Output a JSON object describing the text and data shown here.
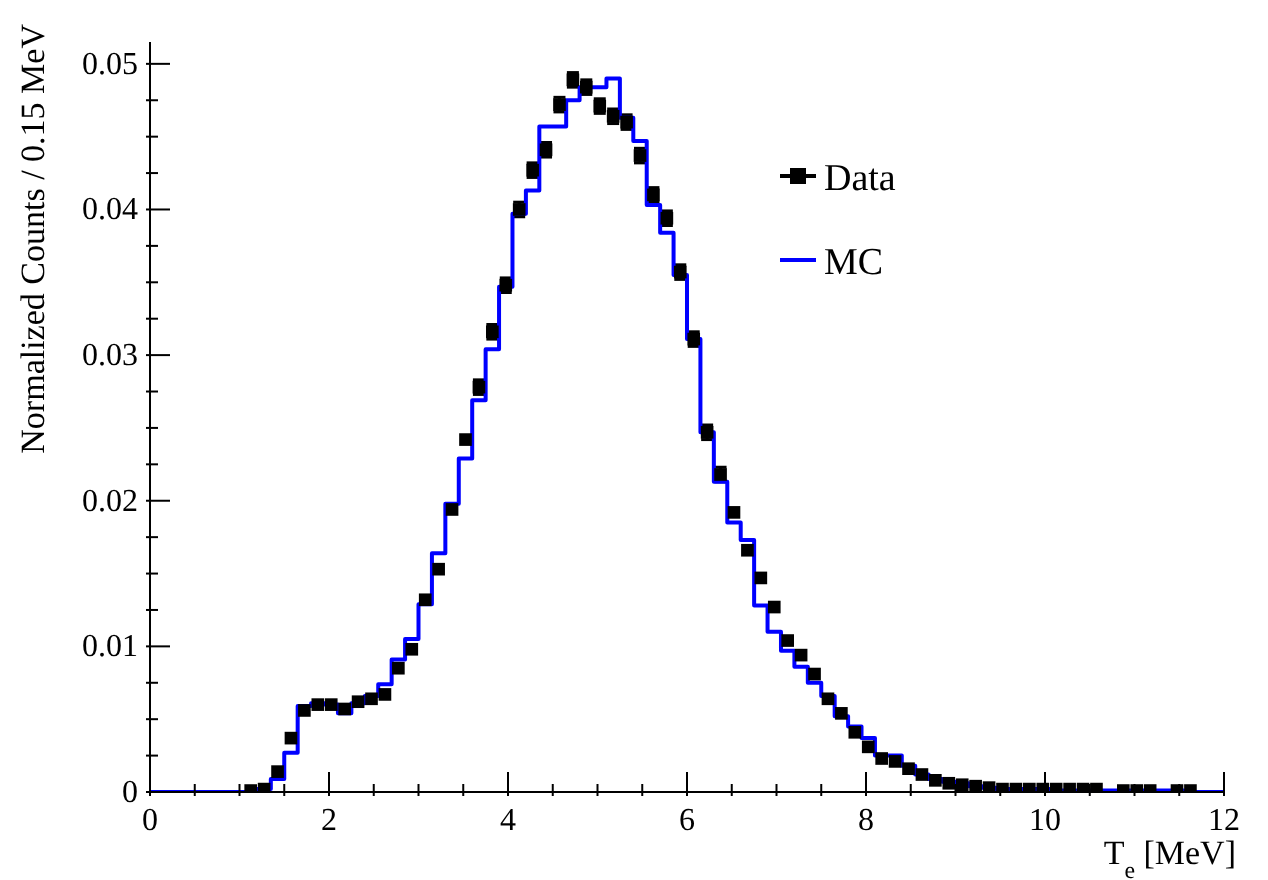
{
  "chart_data": {
    "type": "histogram",
    "xlabel": "T$_{e}$ [MeV]",
    "ylabel": "Normalized Counts / 0.15 MeV",
    "bins": [
      0,
      0.15,
      0.3,
      0.45,
      0.6,
      0.75,
      0.9,
      1.05,
      1.2,
      1.35,
      1.5,
      1.65,
      1.8,
      1.95,
      2.1,
      2.25,
      2.4,
      2.55,
      2.7,
      2.85,
      3,
      3.15,
      3.3,
      3.45,
      3.6,
      3.75,
      3.9,
      4.05,
      4.2,
      4.35,
      4.5,
      4.65,
      4.8,
      4.95,
      5.1,
      5.25,
      5.4,
      5.55,
      5.7,
      5.85,
      6,
      6.15,
      6.3,
      6.45,
      6.6,
      6.75,
      6.9,
      7.05,
      7.2,
      7.35,
      7.5,
      7.65,
      7.8,
      7.95,
      8.1,
      8.25,
      8.4,
      8.55,
      8.7,
      8.85,
      9,
      9.15,
      9.3,
      9.45,
      9.6,
      9.75,
      9.9,
      10.05,
      10.2,
      10.35,
      10.5,
      10.65,
      10.8,
      10.95,
      11.1,
      11.25,
      11.4,
      11.55,
      11.7,
      11.85,
      12
    ],
    "series": [
      {
        "name": "Data",
        "type": "scatter",
        "color": "#000000",
        "marker": "square",
        "x": [
          1.125,
          1.275,
          1.425,
          1.575,
          1.725,
          1.875,
          2.025,
          2.175,
          2.325,
          2.475,
          2.625,
          2.775,
          2.925,
          3.075,
          3.225,
          3.375,
          3.525,
          3.675,
          3.825,
          3.975,
          4.125,
          4.275,
          4.425,
          4.575,
          4.725,
          4.875,
          5.025,
          5.175,
          5.325,
          5.475,
          5.625,
          5.775,
          5.925,
          6.075,
          6.225,
          6.375,
          6.525,
          6.675,
          6.825,
          6.975,
          7.125,
          7.275,
          7.425,
          7.575,
          7.725,
          7.875,
          8.025,
          8.175,
          8.325,
          8.475,
          8.625,
          8.775,
          8.925,
          9.075,
          9.225,
          9.375,
          9.525,
          9.675,
          9.825,
          9.975,
          10.125,
          10.275,
          10.425,
          10.575,
          10.875,
          11.025,
          11.175,
          11.475,
          11.625
        ],
        "values": [
          0.0001,
          0.0002,
          0.0014,
          0.0037,
          0.0056,
          0.006,
          0.006,
          0.0057,
          0.0062,
          0.0064,
          0.0067,
          0.0085,
          0.0098,
          0.0132,
          0.0153,
          0.0194,
          0.0242,
          0.0278,
          0.0316,
          0.0348,
          0.04,
          0.0427,
          0.0441,
          0.0472,
          0.0489,
          0.0484,
          0.0471,
          0.0464,
          0.046,
          0.0437,
          0.041,
          0.0394,
          0.0357,
          0.0311,
          0.0247,
          0.0218,
          0.0192,
          0.0166,
          0.0147,
          0.0127,
          0.0104,
          0.0094,
          0.0081,
          0.0064,
          0.0054,
          0.0041,
          0.0031,
          0.0023,
          0.0021,
          0.0016,
          0.0012,
          0.0008,
          0.0006,
          0.0005,
          0.0004,
          0.0003,
          0.0002,
          0.0002,
          0.0002,
          0.0002,
          0.0002,
          0.0002,
          0.0002,
          0.0002,
          0.0001,
          0.0001,
          0.0001,
          0.0001,
          0.0001
        ],
        "errors": [
          null,
          null,
          null,
          null,
          null,
          null,
          null,
          null,
          null,
          null,
          null,
          null,
          null,
          null,
          null,
          null,
          null,
          0.0005,
          0.0005,
          0.0005,
          0.0005,
          0.0005,
          0.0005,
          0.0005,
          0.0005,
          0.0005,
          0.0005,
          0.0005,
          0.0005,
          0.0005,
          0.0005,
          0.0005,
          0.0005,
          0.0005,
          0.0005,
          0.0005,
          null,
          null,
          null,
          null,
          null,
          null,
          null,
          null,
          null,
          null,
          null,
          null,
          null,
          null,
          null,
          null,
          null,
          null,
          null,
          null,
          null,
          null,
          null,
          null,
          null,
          null,
          null,
          null,
          null,
          null,
          null,
          null,
          null
        ]
      },
      {
        "name": "MC",
        "color": "#0000ff",
        "values": [
          0,
          0,
          0,
          0,
          0,
          0,
          0,
          0,
          0.0002,
          0.0009,
          0.0027,
          0.0059,
          0.0061,
          0.006,
          0.0054,
          0.0061,
          0.0066,
          0.0074,
          0.0091,
          0.0105,
          0.0129,
          0.0164,
          0.0198,
          0.0229,
          0.0269,
          0.0304,
          0.0347,
          0.0397,
          0.0413,
          0.0457,
          0.0457,
          0.0475,
          0.0484,
          0.0484,
          0.049,
          0.0463,
          0.0447,
          0.0403,
          0.0384,
          0.0355,
          0.0311,
          0.0247,
          0.0213,
          0.0185,
          0.0173,
          0.0128,
          0.011,
          0.0097,
          0.0086,
          0.0075,
          0.0066,
          0.0052,
          0.0045,
          0.0037,
          0.0025,
          0.0025,
          0.0018,
          0.0012,
          0.0009,
          0.0007,
          0.0006,
          0.0004,
          0.0003,
          0.0002,
          0.0002,
          0.0002,
          0.0002,
          0.0001,
          0.0001,
          0.0001,
          0.0001,
          0.0001,
          0.0001,
          0.0001,
          0.0001,
          0.0001,
          0.0001,
          0,
          0,
          0
        ]
      }
    ],
    "xlim": [
      0,
      12
    ],
    "xticks": [
      0,
      {
        "value": 0.5,
        "label": null
      },
      {
        "value": 1,
        "label": null
      },
      {
        "value": 1.5,
        "label": null
      },
      2,
      {
        "value": 2.5,
        "label": null
      },
      {
        "value": 3,
        "label": null
      },
      {
        "value": 3.5,
        "label": null
      },
      4,
      {
        "value": 4.5,
        "label": null
      },
      {
        "value": 5,
        "label": null
      },
      {
        "value": 5.5,
        "label": null
      },
      6,
      {
        "value": 6.5,
        "label": null
      },
      {
        "value": 7,
        "label": null
      },
      {
        "value": 7.5,
        "label": null
      },
      8,
      {
        "value": 8.5,
        "label": null
      },
      {
        "value": 9,
        "label": null
      },
      {
        "value": 9.5,
        "label": null
      },
      10,
      {
        "value": 10.5,
        "label": null
      },
      {
        "value": 11,
        "label": null
      },
      {
        "value": 11.5,
        "label": null
      },
      12
    ],
    "ylim": [
      0,
      0.0515
    ],
    "yticks": [
      0,
      {
        "value": 0.0025,
        "label": null
      },
      0.01,
      {
        "value": 0.0075,
        "label": null
      },
      {
        "value": 0.005,
        "label": null
      },
      {
        "value": 0.0125,
        "label": null
      },
      {
        "value": 0.015,
        "label": null
      },
      {
        "value": 0.0175,
        "label": null
      },
      0.02,
      {
        "value": 0.0225,
        "label": null
      },
      {
        "value": 0.025,
        "label": null
      },
      {
        "value": 0.0275,
        "label": null
      },
      0.03,
      {
        "value": 0.0325,
        "label": null
      },
      {
        "value": 0.035,
        "label": null
      },
      {
        "value": 0.0375,
        "label": null
      },
      0.04,
      {
        "value": 0.0425,
        "label": null
      },
      {
        "value": 0.045,
        "label": null
      },
      {
        "value": 0.0475,
        "label": null
      },
      0.05
    ],
    "legend": "top right"
  }
}
